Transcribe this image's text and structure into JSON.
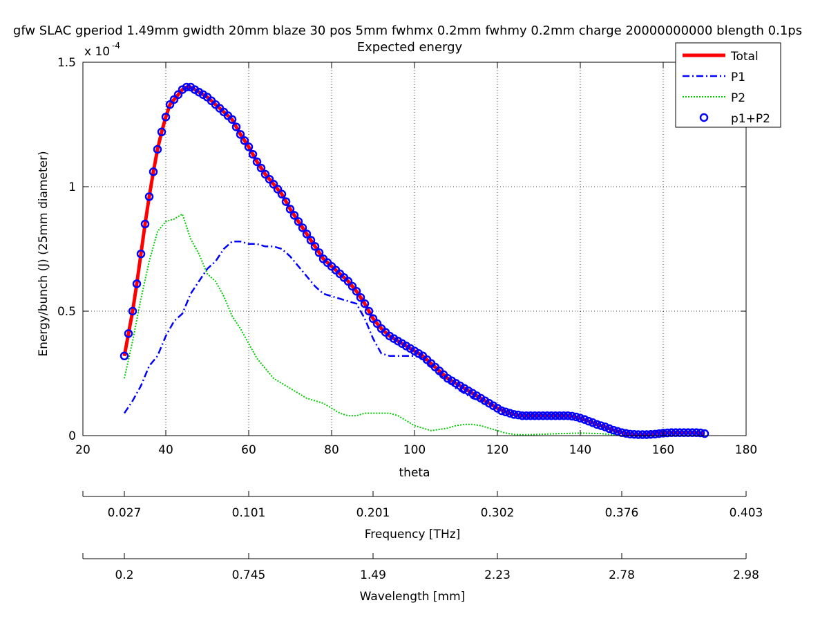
{
  "chart_data": {
    "type": "line",
    "title": "gfw SLAC gperiod 1.49mm gwidth 20mm blaze 30 pos 5mm fwhmx 0.2mm fwhmy 0.2mm charge 20000000000 blength 0.1ps",
    "subtitle": "Expected energy",
    "xlabel": "theta",
    "ylabel": "Energy/bunch (J) (25mm diameter)",
    "y_exponent_label": "x 10",
    "y_exponent": "-4",
    "xlim": [
      20,
      180
    ],
    "ylim": [
      0,
      1.5
    ],
    "x_ticks": [
      "20",
      "40",
      "60",
      "80",
      "100",
      "120",
      "140",
      "160",
      "180"
    ],
    "y_ticks": [
      "0",
      "0.5",
      "1",
      "1.5"
    ],
    "grid": true,
    "legend_position": "top-right",
    "series": [
      {
        "name": "Total",
        "color": "#ff0000",
        "style": "solid-thick",
        "x": [
          30,
          31,
          32,
          33,
          34,
          35,
          36,
          37,
          38,
          39,
          40,
          41,
          42,
          43,
          44,
          45,
          46,
          47,
          48,
          49,
          50,
          52,
          54,
          56,
          58,
          60,
          62,
          64,
          66,
          68,
          70,
          72,
          74,
          76,
          78,
          80,
          82,
          84,
          86,
          88,
          90,
          92,
          94,
          96,
          98,
          100,
          102,
          104,
          106,
          108,
          110,
          112,
          114,
          116,
          118,
          120,
          122,
          124,
          126,
          128,
          130,
          132,
          134,
          136,
          138,
          140,
          142,
          144,
          146,
          148,
          150,
          152,
          154,
          156,
          158,
          160,
          162,
          164,
          166,
          168,
          170
        ],
        "y": [
          0.32,
          0.41,
          0.5,
          0.61,
          0.73,
          0.85,
          0.96,
          1.06,
          1.15,
          1.22,
          1.28,
          1.33,
          1.35,
          1.37,
          1.39,
          1.4,
          1.4,
          1.39,
          1.38,
          1.37,
          1.36,
          1.33,
          1.3,
          1.27,
          1.21,
          1.16,
          1.1,
          1.05,
          1.01,
          0.97,
          0.91,
          0.86,
          0.81,
          0.76,
          0.71,
          0.68,
          0.65,
          0.62,
          0.58,
          0.53,
          0.47,
          0.43,
          0.4,
          0.38,
          0.36,
          0.34,
          0.32,
          0.29,
          0.26,
          0.23,
          0.21,
          0.19,
          0.17,
          0.15,
          0.13,
          0.11,
          0.095,
          0.085,
          0.08,
          0.08,
          0.08,
          0.08,
          0.08,
          0.08,
          0.078,
          0.07,
          0.058,
          0.045,
          0.035,
          0.022,
          0.012,
          0.006,
          0.004,
          0.006,
          0.01,
          0.012,
          0.012,
          0.012,
          0.012,
          0.011,
          0.008
        ]
      },
      {
        "name": "P1",
        "color": "#0000ff",
        "style": "dash-dot",
        "x": [
          30,
          32,
          34,
          36,
          38,
          40,
          42,
          44,
          46,
          48,
          50,
          52,
          54,
          56,
          58,
          60,
          62,
          64,
          66,
          68,
          70,
          72,
          74,
          76,
          78,
          80,
          82,
          84,
          86,
          88,
          90,
          92,
          94,
          96,
          98,
          100,
          102,
          104,
          106,
          108,
          110,
          112,
          114,
          116,
          118,
          120
        ],
        "y": [
          0.09,
          0.14,
          0.2,
          0.28,
          0.32,
          0.4,
          0.46,
          0.49,
          0.57,
          0.62,
          0.67,
          0.7,
          0.75,
          0.78,
          0.78,
          0.77,
          0.77,
          0.76,
          0.76,
          0.75,
          0.72,
          0.68,
          0.64,
          0.6,
          0.57,
          0.56,
          0.55,
          0.54,
          0.53,
          0.47,
          0.39,
          0.33,
          0.32,
          0.32,
          0.32,
          0.32,
          0.31,
          0.28,
          0.25,
          0.22,
          0.19,
          0.17,
          0.15,
          0.14,
          0.13,
          0.12
        ]
      },
      {
        "name": "P2",
        "color": "#00cc00",
        "style": "dotted",
        "x": [
          30,
          32,
          34,
          36,
          38,
          40,
          42,
          44,
          46,
          48,
          50,
          52,
          54,
          56,
          58,
          60,
          62,
          64,
          66,
          68,
          70,
          72,
          74,
          76,
          78,
          80,
          82,
          84,
          86,
          88,
          90,
          92,
          94,
          96,
          98,
          100,
          102,
          104,
          106,
          108,
          110,
          112,
          114,
          116,
          118,
          120,
          122,
          124,
          126,
          128,
          130,
          135,
          140,
          145,
          150
        ],
        "y": [
          0.23,
          0.38,
          0.55,
          0.7,
          0.82,
          0.86,
          0.87,
          0.89,
          0.79,
          0.73,
          0.65,
          0.62,
          0.56,
          0.48,
          0.43,
          0.37,
          0.31,
          0.27,
          0.23,
          0.21,
          0.19,
          0.17,
          0.15,
          0.14,
          0.13,
          0.11,
          0.09,
          0.08,
          0.08,
          0.09,
          0.09,
          0.09,
          0.09,
          0.08,
          0.06,
          0.04,
          0.03,
          0.02,
          0.025,
          0.03,
          0.04,
          0.045,
          0.045,
          0.04,
          0.03,
          0.02,
          0.01,
          0.005,
          0.003,
          0.004,
          0.005,
          0.008,
          0.01,
          0.008,
          0.0
        ]
      },
      {
        "name": "p1+P2",
        "color": "#0000ff",
        "style": "circle-markers",
        "x": [
          30,
          31,
          32,
          33,
          34,
          35,
          36,
          37,
          38,
          39,
          40,
          41,
          42,
          43,
          44,
          45,
          46,
          47,
          48,
          49,
          50,
          51,
          52,
          53,
          54,
          55,
          56,
          57,
          58,
          59,
          60,
          61,
          62,
          63,
          64,
          65,
          66,
          67,
          68,
          69,
          70,
          71,
          72,
          73,
          74,
          75,
          76,
          77,
          78,
          79,
          80,
          81,
          82,
          83,
          84,
          85,
          86,
          87,
          88,
          89,
          90,
          91,
          92,
          93,
          94,
          95,
          96,
          97,
          98,
          99,
          100,
          101,
          102,
          103,
          104,
          105,
          106,
          107,
          108,
          109,
          110,
          111,
          112,
          113,
          114,
          115,
          116,
          117,
          118,
          119,
          120,
          121,
          122,
          123,
          124,
          125,
          126,
          127,
          128,
          129,
          130,
          131,
          132,
          133,
          134,
          135,
          136,
          137,
          138,
          139,
          140,
          141,
          142,
          143,
          144,
          145,
          146,
          147,
          148,
          149,
          150,
          151,
          152,
          153,
          154,
          155,
          156,
          157,
          158,
          159,
          160,
          161,
          162,
          163,
          164,
          165,
          166,
          167,
          168,
          169,
          170
        ],
        "y": [
          0.32,
          0.41,
          0.5,
          0.61,
          0.73,
          0.85,
          0.96,
          1.06,
          1.15,
          1.22,
          1.28,
          1.33,
          1.35,
          1.37,
          1.39,
          1.4,
          1.4,
          1.39,
          1.38,
          1.37,
          1.36,
          1.345,
          1.33,
          1.315,
          1.3,
          1.285,
          1.27,
          1.24,
          1.21,
          1.185,
          1.16,
          1.13,
          1.1,
          1.075,
          1.05,
          1.03,
          1.01,
          0.99,
          0.97,
          0.94,
          0.91,
          0.885,
          0.86,
          0.835,
          0.81,
          0.785,
          0.76,
          0.735,
          0.71,
          0.695,
          0.68,
          0.665,
          0.65,
          0.635,
          0.62,
          0.6,
          0.58,
          0.555,
          0.53,
          0.5,
          0.47,
          0.45,
          0.43,
          0.415,
          0.4,
          0.39,
          0.38,
          0.37,
          0.36,
          0.35,
          0.34,
          0.33,
          0.32,
          0.305,
          0.29,
          0.275,
          0.26,
          0.245,
          0.23,
          0.22,
          0.21,
          0.2,
          0.19,
          0.18,
          0.17,
          0.16,
          0.15,
          0.14,
          0.13,
          0.12,
          0.11,
          0.1,
          0.095,
          0.09,
          0.085,
          0.083,
          0.08,
          0.08,
          0.08,
          0.08,
          0.08,
          0.08,
          0.08,
          0.08,
          0.08,
          0.08,
          0.08,
          0.08,
          0.078,
          0.075,
          0.07,
          0.065,
          0.058,
          0.052,
          0.045,
          0.04,
          0.035,
          0.028,
          0.022,
          0.017,
          0.012,
          0.009,
          0.006,
          0.005,
          0.004,
          0.004,
          0.004,
          0.005,
          0.006,
          0.008,
          0.01,
          0.011,
          0.012,
          0.012,
          0.012,
          0.012,
          0.012,
          0.012,
          0.012,
          0.011,
          0.008
        ]
      }
    ],
    "secondary_axes": [
      {
        "label": "Frequency [THz]",
        "ticks": [
          {
            "theta": 30,
            "label": "0.027"
          },
          {
            "theta": 60,
            "label": "0.101"
          },
          {
            "theta": 90,
            "label": "0.201"
          },
          {
            "theta": 120,
            "label": "0.302"
          },
          {
            "theta": 150,
            "label": "0.376"
          },
          {
            "theta": 180,
            "label": "0.403"
          }
        ]
      },
      {
        "label": "Wavelength [mm]",
        "ticks": [
          {
            "theta": 30,
            "label": "0.2"
          },
          {
            "theta": 60,
            "label": "0.745"
          },
          {
            "theta": 90,
            "label": "1.49"
          },
          {
            "theta": 120,
            "label": "2.23"
          },
          {
            "theta": 150,
            "label": "2.78"
          },
          {
            "theta": 180,
            "label": "2.98"
          }
        ]
      }
    ]
  }
}
